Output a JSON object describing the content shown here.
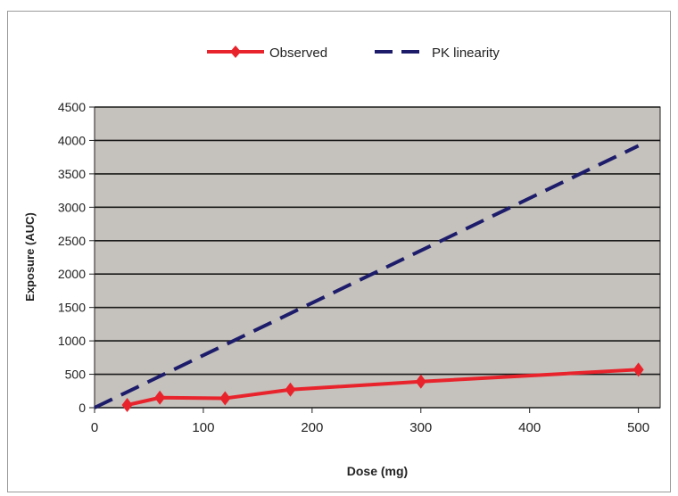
{
  "chart_data": {
    "type": "line",
    "xlabel": "Dose (mg)",
    "ylabel": "Exposure (AUC)",
    "xlim": [
      0,
      520
    ],
    "ylim": [
      0,
      4500
    ],
    "xticks": [
      0,
      100,
      200,
      300,
      400,
      500
    ],
    "yticks": [
      0,
      500,
      1000,
      1500,
      2000,
      2500,
      3000,
      3500,
      4000,
      4500
    ],
    "grid": "horizontal",
    "legend_position": "top-center",
    "plot_background": "#c5c1bc",
    "series": [
      {
        "name": "Observed",
        "style": "solid-diamond",
        "color": "#e8232b",
        "x": [
          30,
          60,
          120,
          180,
          300,
          500
        ],
        "y": [
          40,
          150,
          140,
          270,
          390,
          570
        ]
      },
      {
        "name": "PK linearity",
        "style": "dashed",
        "color": "#1c1c6b",
        "x": [
          0,
          500
        ],
        "y": [
          0,
          3920
        ]
      }
    ]
  }
}
